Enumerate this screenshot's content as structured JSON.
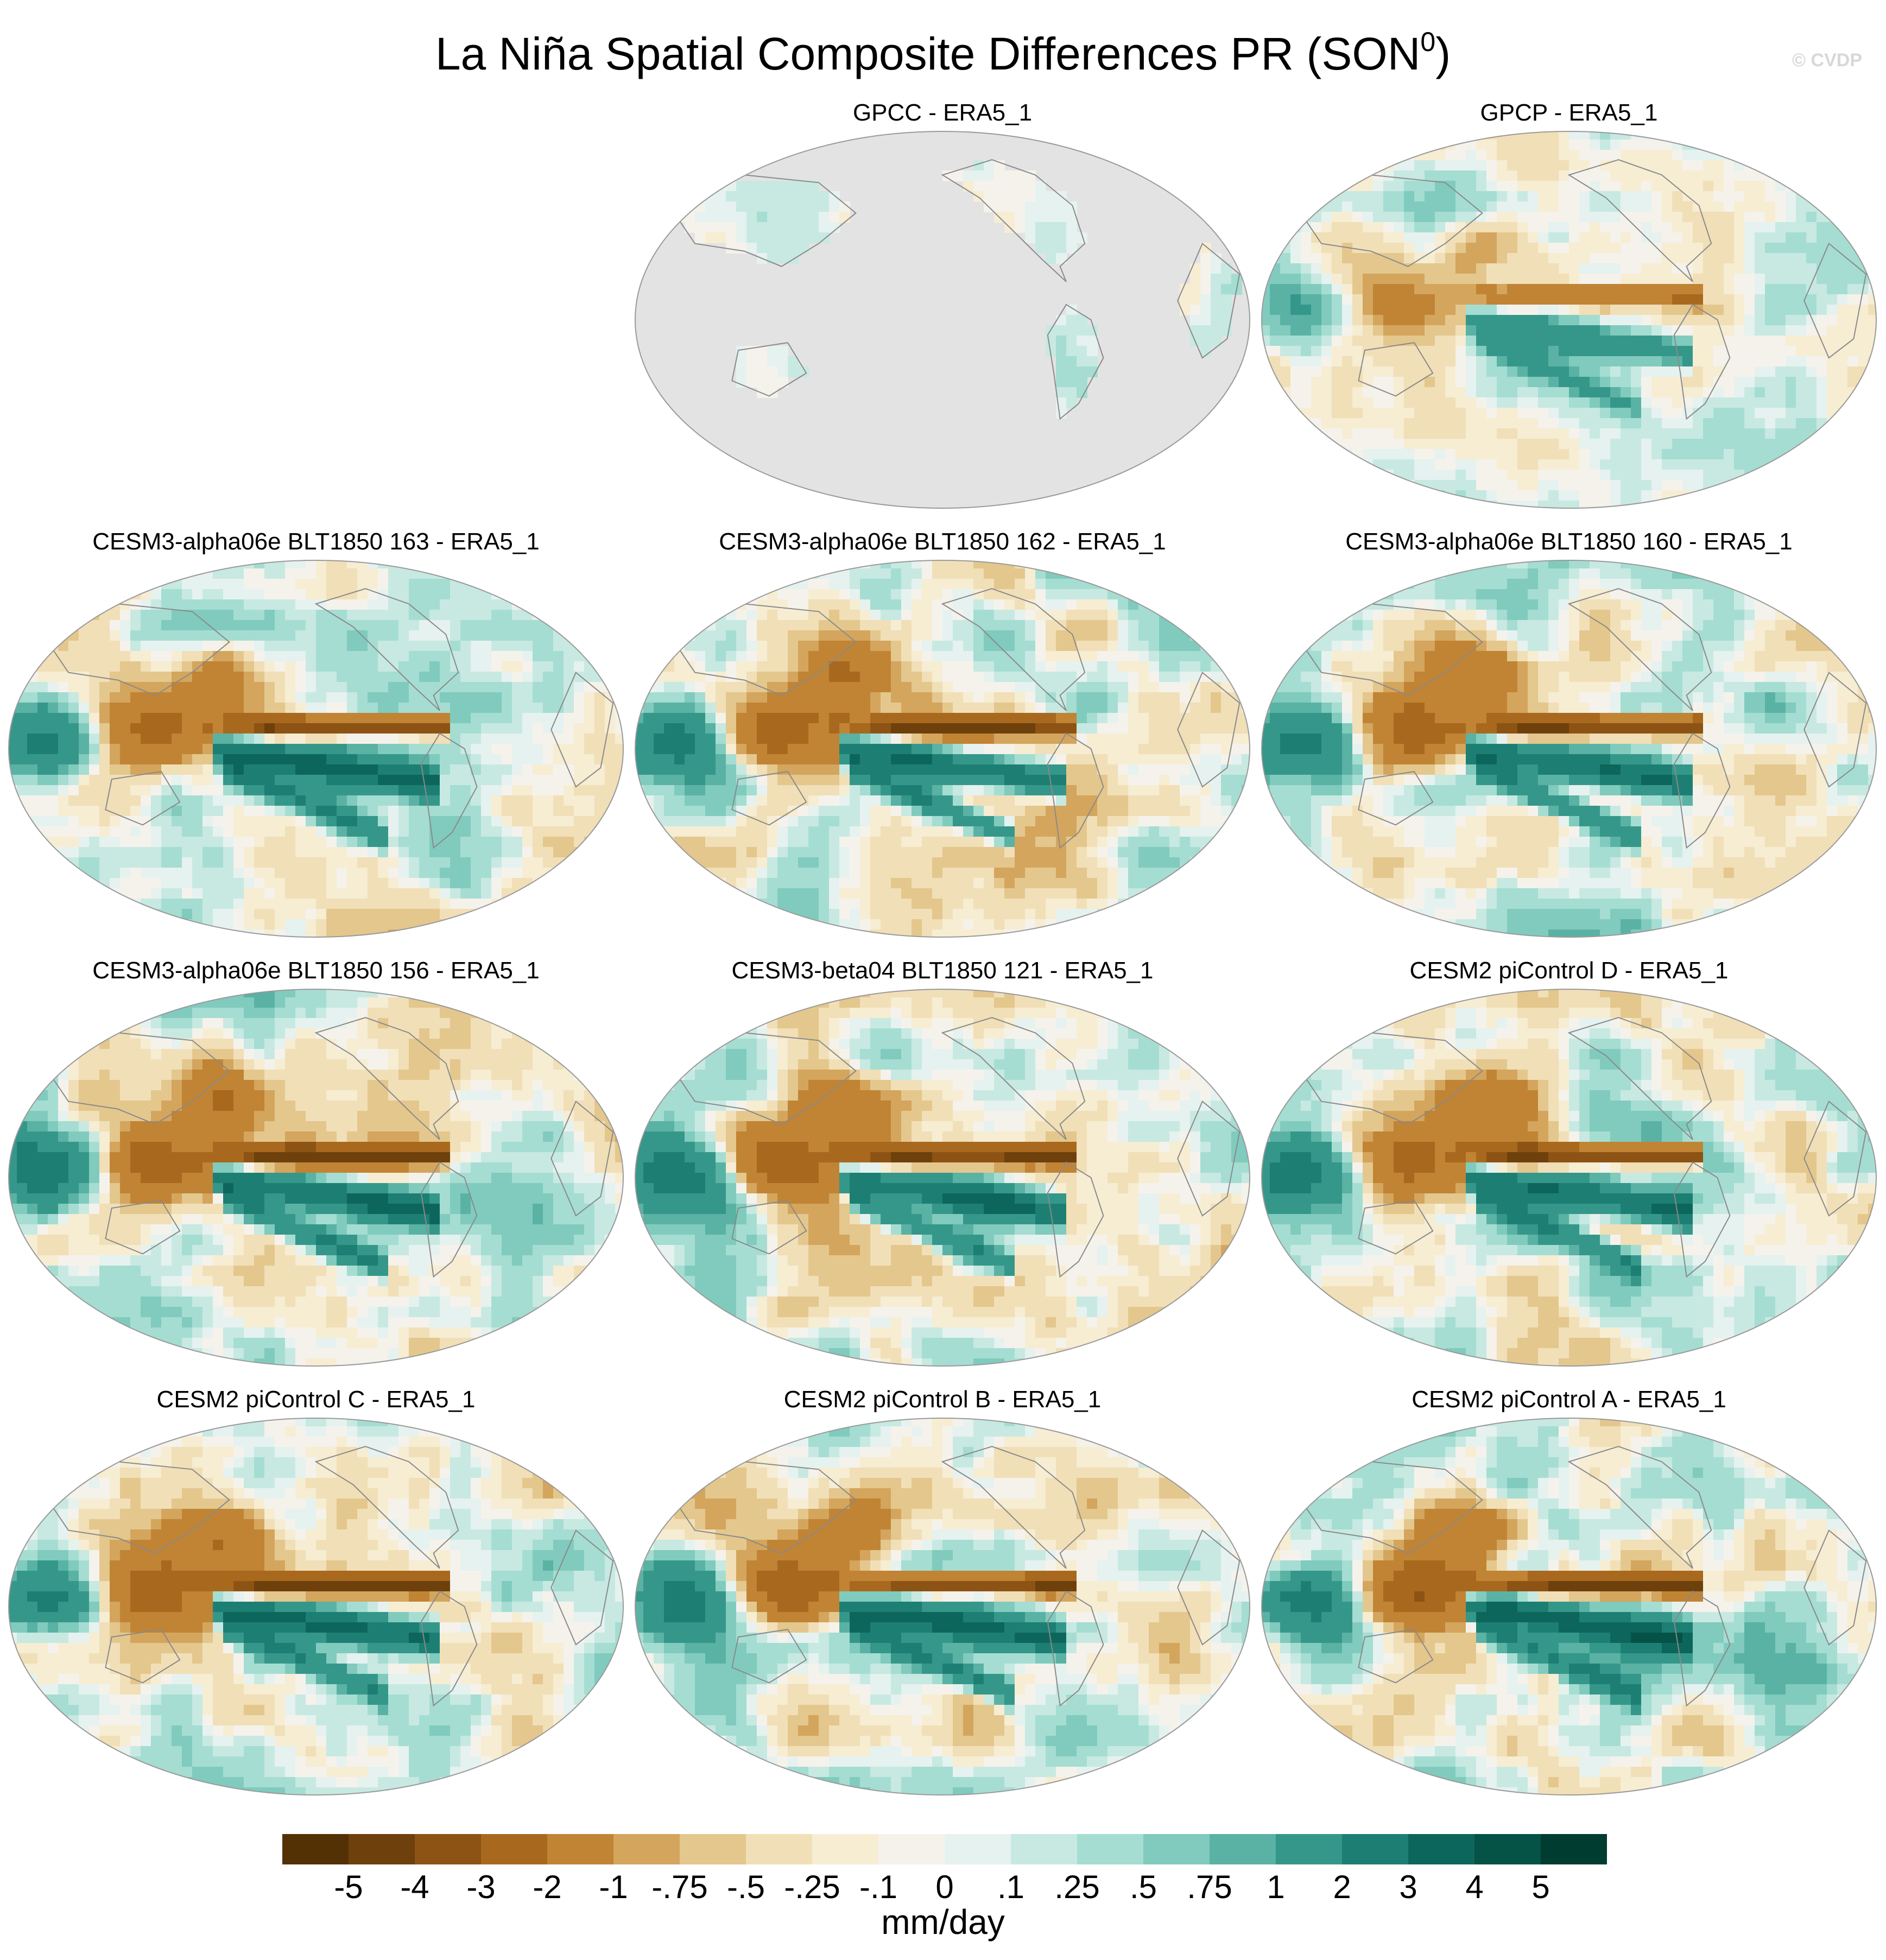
{
  "title": {
    "text": "La Niña Spatial Composite Differences PR (SON",
    "superscript": "0",
    "closing": ")"
  },
  "watermark": "© CVDP",
  "panels": [
    {
      "title": "GPCC - ERA5_1",
      "pattern": "land-only",
      "intensity": 0.45
    },
    {
      "title": "GPCP - ERA5_1",
      "pattern": "observed",
      "intensity": 0.7
    },
    {
      "title": "CESM3-alpha06e BLT1850 163 - ERA5_1",
      "pattern": "model",
      "intensity": 0.9
    },
    {
      "title": "CESM3-alpha06e BLT1850 162 - ERA5_1",
      "pattern": "model",
      "intensity": 0.95
    },
    {
      "title": "CESM3-alpha06e BLT1850 160 - ERA5_1",
      "pattern": "model",
      "intensity": 0.92
    },
    {
      "title": "CESM3-alpha06e BLT1850 156 - ERA5_1",
      "pattern": "model",
      "intensity": 0.97
    },
    {
      "title": "CESM3-beta04 BLT1850 121 - ERA5_1",
      "pattern": "model",
      "intensity": 0.9
    },
    {
      "title": "CESM2 piControl D - ERA5_1",
      "pattern": "model",
      "intensity": 0.9
    },
    {
      "title": "CESM2 piControl C - ERA5_1",
      "pattern": "model",
      "intensity": 0.95
    },
    {
      "title": "CESM2 piControl B - ERA5_1",
      "pattern": "model",
      "intensity": 0.95
    },
    {
      "title": "CESM2 piControl A - ERA5_1",
      "pattern": "model",
      "intensity": 1.0
    }
  ],
  "colorbar": {
    "units": "mm/day",
    "labels": [
      "-5",
      "-4",
      "-3",
      "-2",
      "-1",
      "-.75",
      "-.5",
      "-.25",
      "-.1",
      "0",
      ".1",
      ".25",
      ".5",
      ".75",
      "1",
      "2",
      "3",
      "4",
      "5"
    ],
    "colors": [
      "#543005",
      "#6e400c",
      "#8c5314",
      "#a8691f",
      "#c08434",
      "#d4a55d",
      "#e4c78d",
      "#f1dfb7",
      "#f6edd3",
      "#f5f2ec",
      "#e6f2ef",
      "#c7e9e2",
      "#a5ddd2",
      "#80cbbd",
      "#5ab2a4",
      "#35978a",
      "#1d7f73",
      "#0d665b",
      "#055247",
      "#003c30"
    ]
  },
  "map_colors": {
    "missing": "#e3e3e3",
    "coastline": "#8a8a8a",
    "outline": "#9a9a9a"
  }
}
